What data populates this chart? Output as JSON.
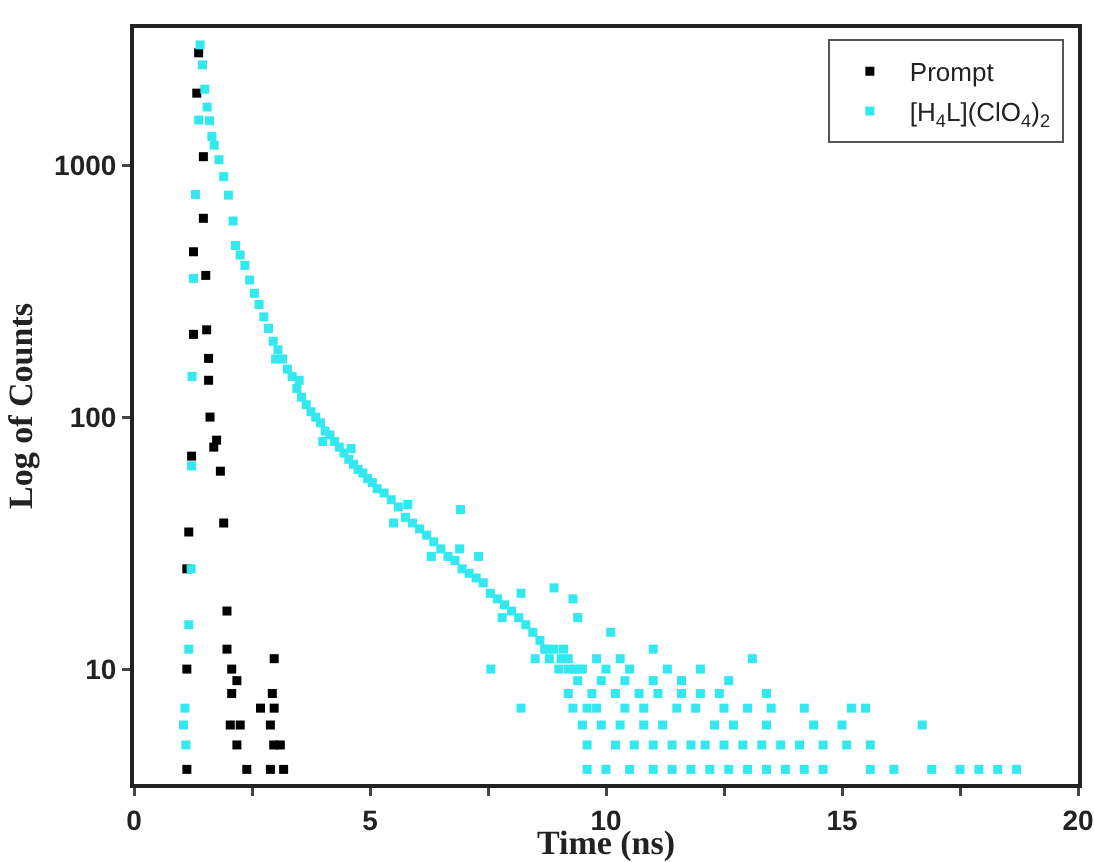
{
  "chart_data": {
    "type": "scatter",
    "xlabel": "Time (ns)",
    "ylabel": "Log of Counts",
    "log": "y",
    "xlim": [
      0,
      20
    ],
    "ylim": [
      3.5,
      3500
    ],
    "xticks": [
      0,
      {
        "value": 2.5,
        "label": null
      },
      5,
      {
        "value": 7.5,
        "label": null
      },
      10,
      {
        "value": 12.5,
        "label": null
      },
      15,
      {
        "value": 17.5,
        "label": null
      },
      20
    ],
    "yticks": [
      10,
      100,
      1000
    ],
    "grid": false,
    "legend": "top right",
    "marker": "square",
    "series": [
      {
        "name": "Prompt",
        "color": "#000000",
        "x": [
          1.37,
          1.33,
          1.47,
          1.47,
          1.26,
          1.52,
          1.26,
          1.54,
          1.58,
          1.58,
          1.61,
          1.75,
          1.69,
          1.83,
          1.22,
          1.9,
          1.16,
          1.12,
          1.97,
          1.97,
          1.12,
          2.07,
          2.18,
          2.07,
          2.97,
          2.93,
          2.68,
          2.97,
          2.04,
          2.25,
          2.89,
          2.18,
          2.96,
          3.1,
          1.12,
          2.39,
          2.89,
          3.17
        ],
        "values": [
          2790,
          1930,
          1080,
          615,
          453,
          365,
          213,
          222,
          171,
          140,
          100,
          81,
          76,
          61,
          70,
          38,
          35,
          25,
          17,
          12,
          10,
          10,
          9,
          8,
          11,
          8,
          7,
          7,
          6,
          6,
          6,
          5,
          5,
          5,
          4,
          4,
          4,
          4
        ]
      },
      {
        "name": "[H$_{4}$L](ClO$_{4}$)$_{2}$",
        "color": "#33e8ee",
        "x": [
          1.05,
          1.08,
          1.1,
          1.16,
          1.16,
          1.21,
          1.22,
          1.23,
          1.26,
          1.3,
          1.37,
          1.4,
          1.45,
          1.5,
          1.55,
          1.6,
          1.65,
          1.7,
          1.8,
          1.9,
          2.0,
          2.1,
          2.15,
          2.25,
          2.35,
          2.45,
          2.55,
          2.65,
          2.75,
          2.85,
          2.95,
          3.05,
          3.15,
          3.25,
          3.35,
          3.45,
          3.55,
          3.65,
          3.75,
          3.85,
          3.95,
          4.05,
          4.15,
          4.25,
          4.35,
          4.45,
          4.55,
          4.65,
          4.75,
          4.85,
          4.95,
          5.05,
          5.15,
          5.3,
          5.45,
          5.6,
          5.75,
          5.9,
          6.05,
          6.2,
          6.35,
          6.5,
          6.65,
          6.8,
          6.95,
          7.1,
          7.25,
          7.4,
          7.55,
          7.7,
          7.85,
          8.0,
          8.15,
          8.3,
          8.45,
          8.6,
          8.75,
          8.9,
          9.05,
          9.2,
          9.35,
          3.0,
          3.5,
          4.0,
          4.6,
          5.5,
          5.8,
          6.3,
          6.9,
          7.3,
          6.92,
          7.8,
          8.2,
          8.5,
          7.56,
          8.2,
          9.6,
          8.9,
          9.3,
          10.1,
          9.4,
          9.6,
          10.0,
          10.5,
          11.0,
          11.4,
          11.8,
          12.2,
          12.6,
          13.0,
          13.4,
          13.8,
          14.2,
          14.6,
          15.6,
          16.1,
          16.9,
          17.5,
          17.9,
          18.3,
          18.7,
          9.6,
          10.2,
          10.6,
          11.0,
          11.4,
          11.8,
          12.1,
          12.5,
          12.9,
          13.3,
          13.7,
          14.1,
          14.6,
          15.1,
          15.6,
          9.5,
          9.9,
          10.3,
          10.8,
          11.2,
          12.3,
          12.7,
          13.4,
          14.4,
          15.0,
          16.7,
          9.3,
          9.8,
          10.4,
          10.8,
          11.5,
          11.9,
          12.5,
          13.0,
          13.5,
          14.2,
          15.2,
          15.5,
          9.2,
          9.7,
          10.2,
          10.7,
          11.1,
          11.6,
          12.0,
          12.4,
          13.4,
          9.4,
          9.9,
          10.4,
          11.0,
          11.6,
          12.6,
          9.0,
          9.5,
          10.0,
          10.5,
          11.3,
          12.0,
          8.8,
          9.2,
          9.8,
          10.3,
          13.1,
          8.7,
          9.1,
          11.0
        ],
        "values": [
          6,
          7,
          5,
          12,
          15,
          25,
          64,
          145,
          355,
          765,
          1510,
          3000,
          2500,
          2000,
          1700,
          1500,
          1300,
          1200,
          1050,
          900,
          760,
          600,
          480,
          440,
          400,
          350,
          310,
          280,
          250,
          225,
          200,
          185,
          170,
          155,
          145,
          130,
          120,
          112,
          105,
          100,
          95,
          88,
          85,
          80,
          76,
          72,
          68,
          65,
          62,
          60,
          57,
          55,
          52,
          50,
          47,
          44,
          40,
          38,
          36,
          34,
          32,
          30,
          28,
          27,
          25,
          24,
          23,
          22,
          20,
          19,
          18,
          17,
          16,
          15,
          14,
          13,
          12,
          12,
          11,
          10,
          10,
          170,
          140,
          80,
          75,
          38,
          45,
          28,
          30,
          28,
          43,
          16,
          20,
          11,
          10,
          7,
          7,
          21,
          19,
          14,
          16,
          4,
          4,
          4,
          4,
          4,
          4,
          4,
          4,
          4,
          4,
          4,
          4,
          4,
          4,
          4,
          4,
          4,
          4,
          4,
          4,
          5,
          5,
          5,
          5,
          5,
          5,
          5,
          5,
          5,
          5,
          5,
          5,
          5,
          5,
          5,
          6,
          6,
          6,
          6,
          6,
          6,
          6,
          6,
          6,
          6,
          6,
          7,
          7,
          7,
          7,
          7,
          7,
          7,
          7,
          7,
          7,
          7,
          7,
          8,
          8,
          8,
          8,
          8,
          8,
          8,
          8,
          8,
          9,
          9,
          9,
          9,
          9,
          9,
          10,
          10,
          10,
          10,
          10,
          10,
          11,
          11,
          11,
          11,
          11,
          12,
          12,
          12
        ]
      }
    ]
  }
}
